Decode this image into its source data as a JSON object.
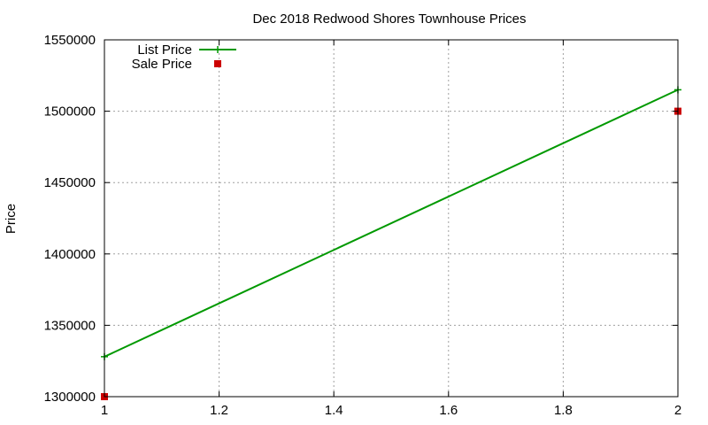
{
  "chart_data": {
    "type": "line",
    "title": "Dec 2018 Redwood Shores Townhouse Prices",
    "xlabel": "",
    "ylabel": "Price",
    "xlim": [
      1,
      2
    ],
    "ylim": [
      1300000,
      1550000
    ],
    "x_ticks": [
      1,
      1.2,
      1.4,
      1.6,
      1.8,
      2
    ],
    "x_tick_labels": [
      "1",
      "1.2",
      "1.4",
      "1.6",
      "1.8",
      "2"
    ],
    "y_ticks": [
      1300000,
      1350000,
      1400000,
      1450000,
      1500000,
      1550000
    ],
    "y_tick_labels": [
      "1300000",
      "1350000",
      "1400000",
      "1450000",
      "1500000",
      "1550000"
    ],
    "grid": true,
    "legend_position": "top-left",
    "series": [
      {
        "name": "List Price",
        "style": "linespoints",
        "marker": "plus",
        "color": "#009900",
        "x": [
          1,
          2
        ],
        "y": [
          1328000,
          1515000
        ]
      },
      {
        "name": "Sale Price",
        "style": "points",
        "marker": "square",
        "color": "#cc0000",
        "x": [
          1,
          2
        ],
        "y": [
          1300000,
          1500000
        ]
      }
    ]
  }
}
